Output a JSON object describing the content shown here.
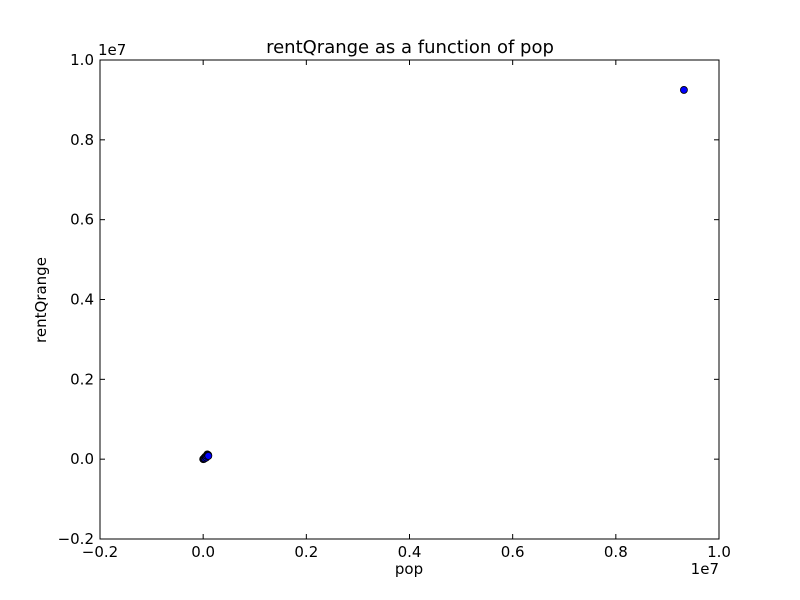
{
  "chart_data": {
    "type": "scatter",
    "title": "rentQrange as a function of pop",
    "x_label": "pop",
    "y_label": "rentQrange",
    "x_offset_label": "1e7",
    "y_offset_label": "1e7",
    "x": [
      0.932,
      0.0,
      0.001,
      0.0015,
      0.002,
      0.003,
      0.004,
      0.005,
      0.006,
      0.007,
      0.008,
      0.009,
      0.01,
      0.01
    ],
    "values": [
      0.925,
      0.0,
      0.001,
      0.0005,
      0.003,
      0.002,
      0.006,
      0.005,
      0.004,
      0.008,
      0.012,
      0.011,
      0.01,
      0.008
    ],
    "color": "#0000ff",
    "xlim": [
      -0.2,
      1.0
    ],
    "ylim": [
      -0.2,
      1.0
    ],
    "xticks": [
      {
        "value": -0.2,
        "label": "−0.2"
      },
      {
        "value": 0.0,
        "label": "0.0"
      },
      0.2,
      0.4,
      0.6,
      0.8,
      {
        "value": 1.0,
        "label": "1.0"
      }
    ],
    "yticks": [
      {
        "value": -0.2,
        "label": "−0.2"
      },
      {
        "value": 0.0,
        "label": "0.0"
      },
      0.2,
      0.4,
      0.6,
      0.8,
      {
        "value": 1.0,
        "label": "1.0"
      }
    ]
  }
}
